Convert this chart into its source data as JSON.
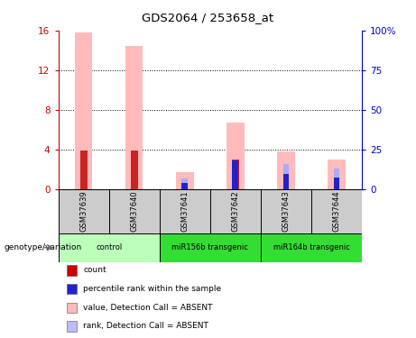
{
  "title": "GDS2064 / 253658_at",
  "samples": [
    "GSM37639",
    "GSM37640",
    "GSM37641",
    "GSM37642",
    "GSM37643",
    "GSM37644"
  ],
  "pink_bars": [
    15.8,
    14.4,
    1.7,
    6.7,
    3.8,
    3.0
  ],
  "red_bars": [
    3.9,
    3.9,
    0.0,
    3.0,
    0.0,
    0.0
  ],
  "blue_bars": [
    0.0,
    0.0,
    0.6,
    2.9,
    1.5,
    1.2
  ],
  "lightblue_bars": [
    0.0,
    0.0,
    0.5,
    0.0,
    1.0,
    0.9
  ],
  "ylim_left": [
    0,
    16
  ],
  "ylim_right": [
    0,
    100
  ],
  "yticks_left": [
    0,
    4,
    8,
    12,
    16
  ],
  "yticks_right": [
    0,
    25,
    50,
    75,
    100
  ],
  "yticklabels_right": [
    "0",
    "25",
    "50",
    "75",
    "100%"
  ],
  "left_color": "#cc0000",
  "right_color": "#0000cc",
  "bar_width": 0.35,
  "sample_bg": "#cccccc",
  "group_info": [
    {
      "name": "control",
      "start": 0,
      "end": 2,
      "color": "#bbffbb"
    },
    {
      "name": "miR156b transgenic",
      "start": 2,
      "end": 4,
      "color": "#33dd33"
    },
    {
      "name": "miR164b transgenic",
      "start": 4,
      "end": 6,
      "color": "#33dd33"
    }
  ],
  "legend_items": [
    {
      "label": "count",
      "color": "#cc0000"
    },
    {
      "label": "percentile rank within the sample",
      "color": "#2222cc"
    },
    {
      "label": "value, Detection Call = ABSENT",
      "color": "#ffbbbb"
    },
    {
      "label": "rank, Detection Call = ABSENT",
      "color": "#bbbbff"
    }
  ],
  "grid_lines": [
    4,
    8,
    12
  ]
}
